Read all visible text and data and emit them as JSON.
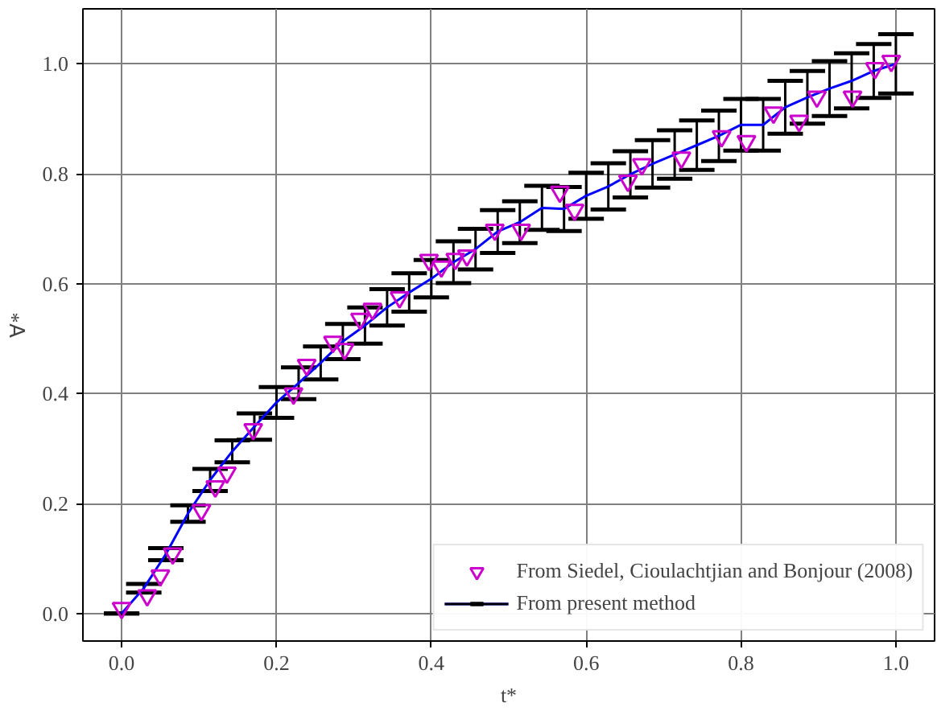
{
  "chart_data": {
    "type": "scatter",
    "xlabel": "t*",
    "ylabel": "∀*",
    "xlim": [
      -0.05,
      1.05
    ],
    "ylim": [
      -0.05,
      1.1
    ],
    "xticks": [
      {
        "value": 0,
        "label": "0.0"
      },
      {
        "value": 0.2,
        "label": "0.2"
      },
      {
        "value": 0.4,
        "label": "0.4"
      },
      {
        "value": 0.6,
        "label": "0.6"
      },
      {
        "value": 0.8,
        "label": "0.8"
      },
      {
        "value": 1.0,
        "label": "1.0"
      }
    ],
    "yticks": [
      {
        "value": 0,
        "label": "0.0"
      },
      {
        "value": 0.2,
        "label": "0.2"
      },
      {
        "value": 0.4,
        "label": "0.4"
      },
      {
        "value": 0.6,
        "label": "0.6"
      },
      {
        "value": 0.8,
        "label": "0.8"
      },
      {
        "value": 1.0,
        "label": "1.0"
      }
    ],
    "grid": true,
    "legend": "bottom right",
    "series": [
      {
        "name": "From Siedel, Cioulachtjian and Bonjour (2008)",
        "marker": "triangle",
        "color": "#cc00cc",
        "x": [
          0,
          0.033,
          0.05,
          0.066,
          0.103,
          0.121,
          0.136,
          0.17,
          0.222,
          0.239,
          0.273,
          0.288,
          0.308,
          0.324,
          0.359,
          0.397,
          0.413,
          0.431,
          0.446,
          0.482,
          0.516,
          0.566,
          0.585,
          0.654,
          0.672,
          0.723,
          0.775,
          0.807,
          0.842,
          0.875,
          0.898,
          0.944,
          0.973,
          0.994
        ],
        "values": [
          0.01,
          0.033,
          0.069,
          0.109,
          0.188,
          0.231,
          0.256,
          0.335,
          0.4,
          0.452,
          0.494,
          0.481,
          0.536,
          0.554,
          0.575,
          0.643,
          0.631,
          0.645,
          0.651,
          0.698,
          0.698,
          0.767,
          0.734,
          0.787,
          0.817,
          0.829,
          0.868,
          0.859,
          0.911,
          0.896,
          0.94,
          0.94,
          0.992,
          1.005
        ]
      },
      {
        "name": "From present method",
        "type": "line",
        "marker": "none",
        "line_style": "solid",
        "color": "#0000ff",
        "x": [
          0,
          0.0286,
          0.0571,
          0.0857,
          0.1143,
          0.1429,
          0.1714,
          0.2,
          0.2286,
          0.2571,
          0.2857,
          0.3143,
          0.3429,
          0.3714,
          0.4,
          0.4286,
          0.4571,
          0.4857,
          0.5143,
          0.5429,
          0.5714,
          0.6,
          0.6286,
          0.6571,
          0.6857,
          0.7143,
          0.7429,
          0.7714,
          0.8,
          0.8286,
          0.8571,
          0.8857,
          0.9143,
          0.9429,
          0.9714,
          1.0
        ],
        "values": [
          0,
          0.046,
          0.108,
          0.182,
          0.243,
          0.295,
          0.34,
          0.384,
          0.419,
          0.456,
          0.495,
          0.524,
          0.557,
          0.584,
          0.609,
          0.639,
          0.663,
          0.695,
          0.712,
          0.738,
          0.736,
          0.76,
          0.777,
          0.799,
          0.818,
          0.835,
          0.852,
          0.869,
          0.889,
          0.889,
          0.921,
          0.939,
          0.955,
          0.969,
          0.987,
          1.0
        ],
        "errors": [
          0,
          0.008,
          0.011,
          0.015,
          0.02,
          0.02,
          0.024,
          0.028,
          0.029,
          0.03,
          0.032,
          0.033,
          0.033,
          0.035,
          0.034,
          0.038,
          0.037,
          0.039,
          0.038,
          0.04,
          0.04,
          0.042,
          0.042,
          0.042,
          0.043,
          0.044,
          0.045,
          0.046,
          0.047,
          0.047,
          0.048,
          0.048,
          0.05,
          0.05,
          0.049,
          0.054
        ]
      }
    ]
  }
}
